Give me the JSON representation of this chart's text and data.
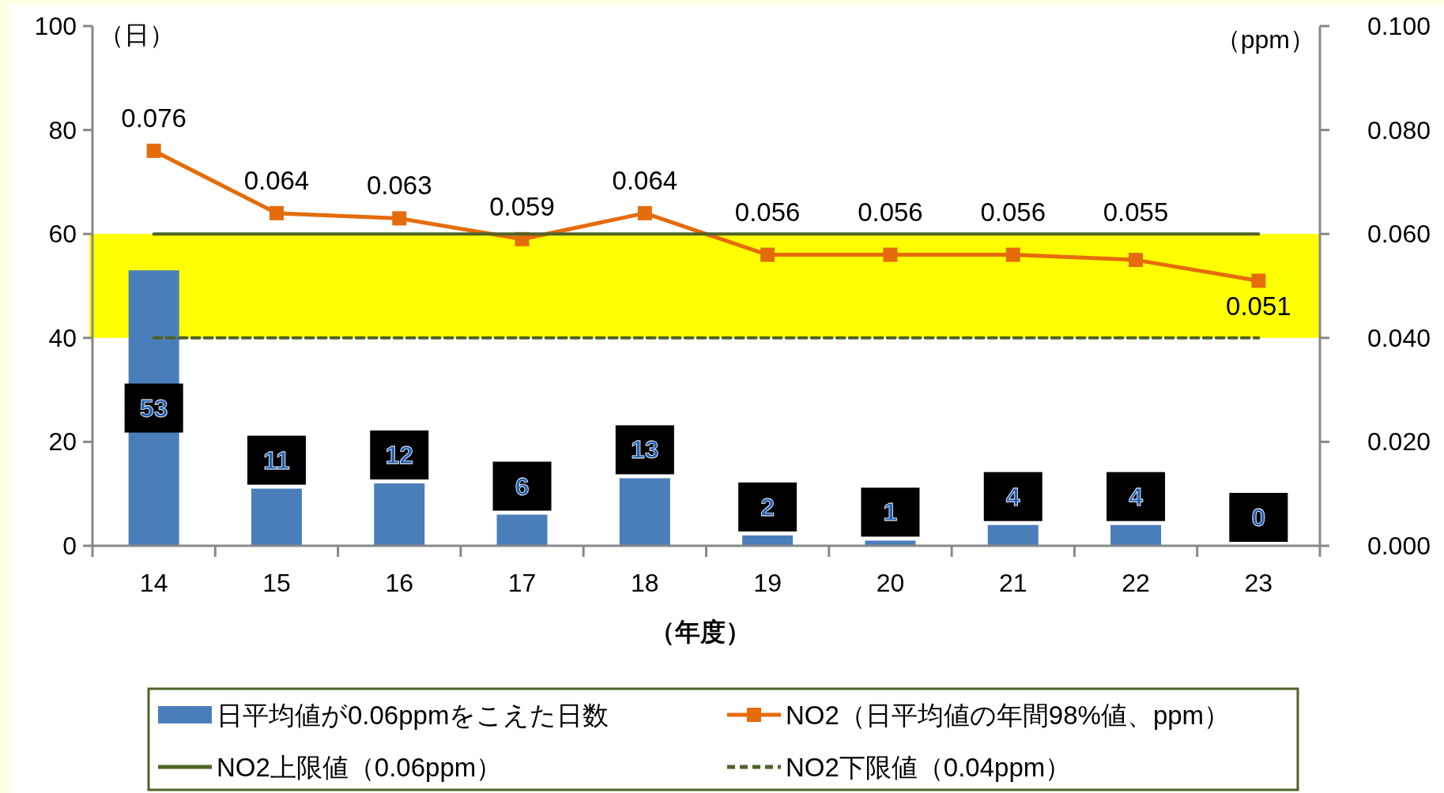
{
  "chart_data": {
    "type": "bar",
    "ylabel": "（日）",
    "y2label": "（ppm）",
    "xlabel": "（年度）",
    "categories": [
      "14",
      "15",
      "16",
      "17",
      "18",
      "19",
      "20",
      "21",
      "22",
      "23"
    ],
    "series": [
      {
        "name": "日平均値が0.06ppmをこえた日数",
        "color": "#4a7ebb",
        "values": [
          53,
          11,
          12,
          6,
          13,
          2,
          1,
          4,
          4,
          0
        ],
        "value_labels": [
          "53",
          "11",
          "12",
          "6",
          "13",
          "2",
          "1",
          "4",
          "4",
          "0"
        ]
      },
      {
        "name": "NO2（日平均値の年間98%値、ppm）",
        "type": "line",
        "axis": "y2",
        "color": "#e46c0a",
        "marker": "square",
        "values": [
          0.076,
          0.064,
          0.063,
          0.059,
          0.064,
          0.056,
          0.056,
          0.056,
          0.055,
          0.051
        ],
        "value_labels": [
          "0.076",
          "0.064",
          "0.063",
          "0.059",
          "0.064",
          "0.056",
          "0.056",
          "0.056",
          "0.055",
          "0.051"
        ]
      },
      {
        "name": "NO2上限値（0.06ppm）",
        "type": "line",
        "axis": "y2",
        "color": "#4f6228",
        "marker": "none",
        "line_style": "solid",
        "values": [
          0.06,
          0.06,
          0.06,
          0.06,
          0.06,
          0.06,
          0.06,
          0.06,
          0.06,
          0.06
        ]
      },
      {
        "name": "NO2下限値（0.04ppm）",
        "type": "line",
        "axis": "y2",
        "color": "#4f6228",
        "marker": "none",
        "line_style": "dashed",
        "values": [
          0.04,
          0.04,
          0.04,
          0.04,
          0.04,
          0.04,
          0.04,
          0.04,
          0.04,
          0.04
        ]
      }
    ],
    "ylim": [
      0,
      100
    ],
    "yticks": [
      0,
      20,
      40,
      60,
      80,
      100
    ],
    "y2lim": [
      0,
      0.1
    ],
    "y2ticks": [
      {
        "value": 0,
        "label": "0.000"
      },
      {
        "value": 0.02,
        "label": "0.020"
      },
      {
        "value": 0.04,
        "label": "0.040"
      },
      {
        "value": 0.06,
        "label": "0.060"
      },
      {
        "value": 0.08,
        "label": "0.080"
      },
      {
        "value": 0.1,
        "label": "0.100"
      }
    ],
    "bands": [
      {
        "axis": "y2",
        "from": 0.04,
        "to": 0.06,
        "color": "#ffff00"
      }
    ],
    "grid": false,
    "legend": "bottom"
  }
}
